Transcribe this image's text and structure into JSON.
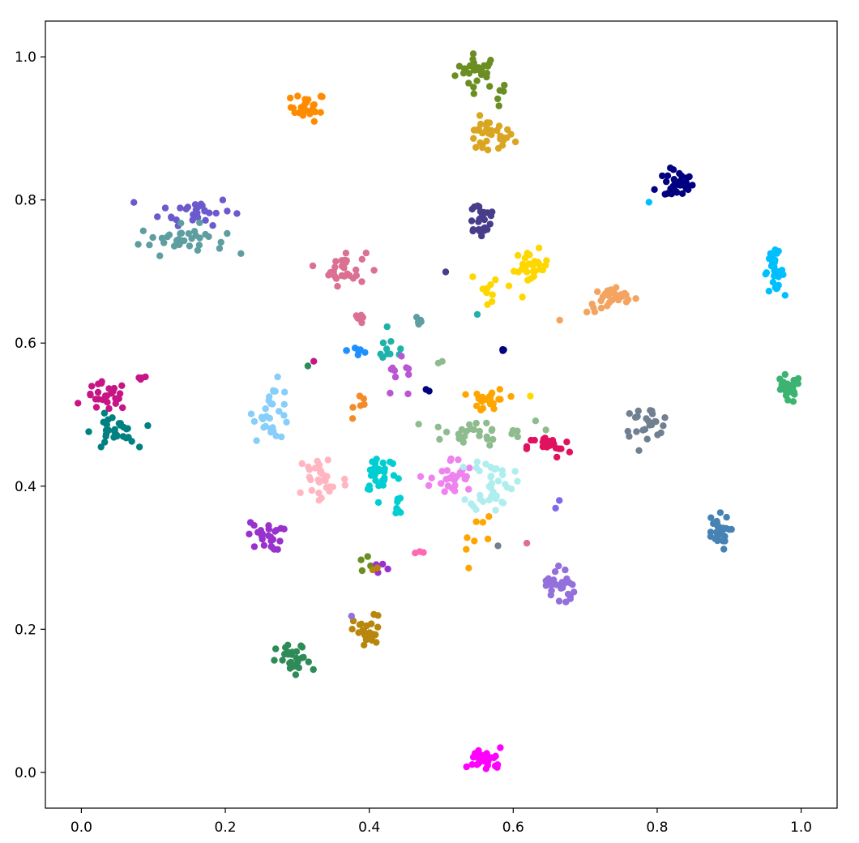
{
  "chart_data": {
    "type": "scatter",
    "title": "",
    "xlabel": "",
    "ylabel": "",
    "xlim": [
      -0.05,
      1.05
    ],
    "ylim": [
      -0.05,
      1.05
    ],
    "xticks": [
      0.0,
      0.2,
      0.4,
      0.6,
      0.8,
      1.0
    ],
    "yticks": [
      0.0,
      0.2,
      0.4,
      0.6,
      0.8,
      1.0
    ],
    "xtick_labels": [
      "0.0",
      "0.2",
      "0.4",
      "0.6",
      "0.8",
      "1.0"
    ],
    "ytick_labels": [
      "0.0",
      "0.2",
      "0.4",
      "0.6",
      "0.8",
      "1.0"
    ],
    "grid": false,
    "legend": "none",
    "clusters": [
      {
        "color": "#6B8E23",
        "center": [
          0.55,
          0.98
        ],
        "spread": [
          0.015,
          0.012
        ],
        "count": 28
      },
      {
        "color": "#6B8E23",
        "center": [
          0.585,
          0.945
        ],
        "spread": [
          0.004,
          0.01
        ],
        "count": 5
      },
      {
        "color": "#FF8C00",
        "center": [
          0.315,
          0.93
        ],
        "spread": [
          0.012,
          0.01
        ],
        "count": 25
      },
      {
        "color": "#DAA520",
        "center": [
          0.565,
          0.888
        ],
        "spread": [
          0.018,
          0.012
        ],
        "count": 35
      },
      {
        "color": "#000080",
        "center": [
          0.83,
          0.823
        ],
        "spread": [
          0.01,
          0.01
        ],
        "count": 30
      },
      {
        "color": "#000080",
        "center": [
          0.81,
          0.813
        ],
        "spread": [
          0.01,
          0.006
        ],
        "count": 4
      },
      {
        "color": "#00BFFF",
        "center": [
          0.787,
          0.795
        ],
        "spread": [
          0.002,
          0.002
        ],
        "count": 1
      },
      {
        "color": "#483D8B",
        "center": [
          0.555,
          0.775
        ],
        "spread": [
          0.012,
          0.015
        ],
        "count": 28
      },
      {
        "color": "#6A5ACD",
        "center": [
          0.16,
          0.785
        ],
        "spread": [
          0.025,
          0.01
        ],
        "count": 30
      },
      {
        "color": "#5F9EA0",
        "center": [
          0.14,
          0.745
        ],
        "spread": [
          0.03,
          0.01
        ],
        "count": 35
      },
      {
        "color": "#DB7093",
        "center": [
          0.365,
          0.705
        ],
        "spread": [
          0.015,
          0.012
        ],
        "count": 28
      },
      {
        "color": "#FFD700",
        "center": [
          0.625,
          0.705
        ],
        "spread": [
          0.012,
          0.012
        ],
        "count": 28
      },
      {
        "color": "#FFD700",
        "center": [
          0.57,
          0.68
        ],
        "spread": [
          0.015,
          0.01
        ],
        "count": 10
      },
      {
        "color": "#00BFFF",
        "center": [
          0.962,
          0.7
        ],
        "spread": [
          0.007,
          0.013
        ],
        "count": 28
      },
      {
        "color": "#F4A460",
        "center": [
          0.738,
          0.66
        ],
        "spread": [
          0.018,
          0.009
        ],
        "count": 28
      },
      {
        "color": "#5F9EA0",
        "center": [
          0.47,
          0.632
        ],
        "spread": [
          0.003,
          0.005
        ],
        "count": 6
      },
      {
        "color": "#DB7093",
        "center": [
          0.385,
          0.635
        ],
        "spread": [
          0.005,
          0.01
        ],
        "count": 6
      },
      {
        "color": "#1E90FF",
        "center": [
          0.385,
          0.59
        ],
        "spread": [
          0.008,
          0.006
        ],
        "count": 8
      },
      {
        "color": "#20B2AA",
        "center": [
          0.43,
          0.59
        ],
        "spread": [
          0.012,
          0.01
        ],
        "count": 10
      },
      {
        "color": "#3CB371",
        "center": [
          0.98,
          0.535
        ],
        "spread": [
          0.01,
          0.01
        ],
        "count": 26
      },
      {
        "color": "#C71585",
        "center": [
          0.035,
          0.525
        ],
        "spread": [
          0.015,
          0.01
        ],
        "count": 28
      },
      {
        "color": "#C71585",
        "center": [
          0.083,
          0.55
        ],
        "spread": [
          0.004,
          0.002
        ],
        "count": 4
      },
      {
        "color": "#BA55D3",
        "center": [
          0.44,
          0.545
        ],
        "spread": [
          0.015,
          0.015
        ],
        "count": 10
      },
      {
        "color": "#F28C28",
        "center": [
          0.395,
          0.52
        ],
        "spread": [
          0.008,
          0.01
        ],
        "count": 6
      },
      {
        "color": "#FFA500",
        "center": [
          0.568,
          0.52
        ],
        "spread": [
          0.012,
          0.008
        ],
        "count": 25
      },
      {
        "color": "#87CEFA",
        "center": [
          0.265,
          0.505
        ],
        "spread": [
          0.013,
          0.02
        ],
        "count": 30
      },
      {
        "color": "#708090",
        "center": [
          0.785,
          0.49
        ],
        "spread": [
          0.018,
          0.01
        ],
        "count": 25
      },
      {
        "color": "#008080",
        "center": [
          0.045,
          0.475
        ],
        "spread": [
          0.015,
          0.012
        ],
        "count": 30
      },
      {
        "color": "#8FBC8F",
        "center": [
          0.54,
          0.475
        ],
        "spread": [
          0.045,
          0.008
        ],
        "count": 30
      },
      {
        "color": "#E0115F",
        "center": [
          0.65,
          0.455
        ],
        "spread": [
          0.015,
          0.008
        ],
        "count": 22
      },
      {
        "color": "#FFB6C1",
        "center": [
          0.335,
          0.41
        ],
        "spread": [
          0.018,
          0.02
        ],
        "count": 32
      },
      {
        "color": "#00CED1",
        "center": [
          0.415,
          0.42
        ],
        "spread": [
          0.012,
          0.015
        ],
        "count": 30
      },
      {
        "color": "#EE82EE",
        "center": [
          0.515,
          0.41
        ],
        "spread": [
          0.015,
          0.015
        ],
        "count": 30
      },
      {
        "color": "#AFEEEE",
        "center": [
          0.57,
          0.405
        ],
        "spread": [
          0.015,
          0.02
        ],
        "count": 40
      },
      {
        "color": "#00CED1",
        "center": [
          0.44,
          0.37
        ],
        "spread": [
          0.003,
          0.012
        ],
        "count": 8
      },
      {
        "color": "#4682B4",
        "center": [
          0.882,
          0.335
        ],
        "spread": [
          0.009,
          0.012
        ],
        "count": 26
      },
      {
        "color": "#9932CC",
        "center": [
          0.255,
          0.33
        ],
        "spread": [
          0.012,
          0.01
        ],
        "count": 26
      },
      {
        "color": "#9370DB",
        "center": [
          0.665,
          0.262
        ],
        "spread": [
          0.01,
          0.015
        ],
        "count": 26
      },
      {
        "color": "#FFA500",
        "center": [
          0.545,
          0.33
        ],
        "spread": [
          0.015,
          0.02
        ],
        "count": 8
      },
      {
        "color": "#B8860B",
        "center": [
          0.398,
          0.195
        ],
        "spread": [
          0.01,
          0.012
        ],
        "count": 28
      },
      {
        "color": "#2E8B57",
        "center": [
          0.295,
          0.155
        ],
        "spread": [
          0.012,
          0.012
        ],
        "count": 30
      },
      {
        "color": "#FF00FF",
        "center": [
          0.562,
          0.018
        ],
        "spread": [
          0.012,
          0.008
        ],
        "count": 30
      },
      {
        "color": "#6B8E23",
        "center": [
          0.385,
          0.295
        ],
        "spread": [
          0.01,
          0.005
        ],
        "count": 4
      },
      {
        "color": "#9932CC",
        "center": [
          0.415,
          0.288
        ],
        "spread": [
          0.005,
          0.004
        ],
        "count": 5
      },
      {
        "color": "#B8860B",
        "center": [
          0.41,
          0.283
        ],
        "spread": [
          0.003,
          0.002
        ],
        "count": 2
      },
      {
        "color": "#000080",
        "center": [
          0.585,
          0.59
        ],
        "spread": [
          0.003,
          0.001
        ],
        "count": 3
      },
      {
        "color": "#000080",
        "center": [
          0.48,
          0.535
        ],
        "spread": [
          0.003,
          0.002
        ],
        "count": 2
      },
      {
        "color": "#C71585",
        "center": [
          0.325,
          0.575
        ],
        "spread": [
          0.002,
          0.002
        ],
        "count": 1
      },
      {
        "color": "#2E8B57",
        "center": [
          0.315,
          0.567
        ],
        "spread": [
          0.002,
          0.002
        ],
        "count": 1
      },
      {
        "color": "#20B2AA",
        "center": [
          0.548,
          0.638
        ],
        "spread": [
          0.002,
          0.002
        ],
        "count": 1
      },
      {
        "color": "#F4A460",
        "center": [
          0.665,
          0.635
        ],
        "spread": [
          0.002,
          0.002
        ],
        "count": 1
      },
      {
        "color": "#483D8B",
        "center": [
          0.51,
          0.697
        ],
        "spread": [
          0.002,
          0.002
        ],
        "count": 1
      },
      {
        "color": "#FF69B4",
        "center": [
          0.468,
          0.31
        ],
        "spread": [
          0.005,
          0.004
        ],
        "count": 3
      },
      {
        "color": "#708090",
        "center": [
          0.58,
          0.315
        ],
        "spread": [
          0.002,
          0.002
        ],
        "count": 1
      },
      {
        "color": "#FFD700",
        "center": [
          0.625,
          0.53
        ],
        "spread": [
          0.002,
          0.002
        ],
        "count": 1
      },
      {
        "color": "#8FBC8F",
        "center": [
          0.5,
          0.575
        ],
        "spread": [
          0.003,
          0.002
        ],
        "count": 2
      },
      {
        "color": "#7B68EE",
        "center": [
          0.662,
          0.375
        ],
        "spread": [
          0.002,
          0.003
        ],
        "count": 2
      },
      {
        "color": "#DB7093",
        "center": [
          0.62,
          0.32
        ],
        "spread": [
          0.002,
          0.002
        ],
        "count": 1
      },
      {
        "color": "#9370DB",
        "center": [
          0.375,
          0.215
        ],
        "spread": [
          0.002,
          0.002
        ],
        "count": 1
      }
    ]
  }
}
